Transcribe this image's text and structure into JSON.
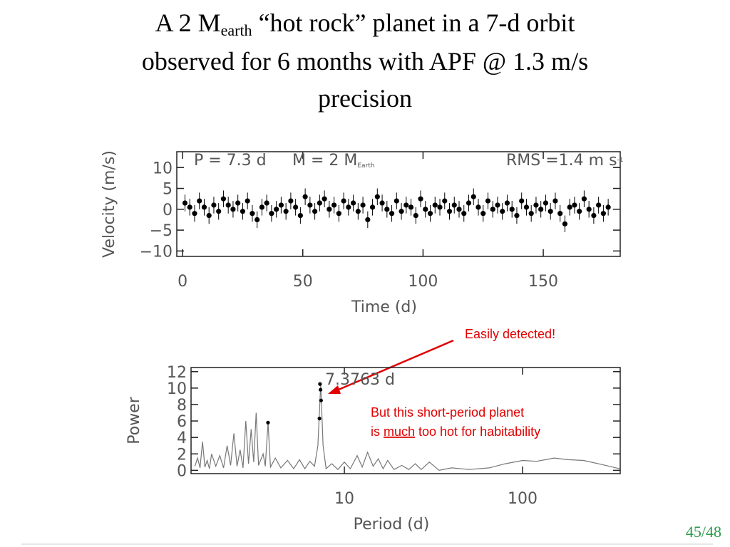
{
  "title": {
    "line1": [
      "A 2 M",
      "earth",
      "“hot rock” planet in a 7-d orbit"
    ],
    "line2": "observed for 6 months with APF @ 1.3 m/s",
    "line3": "precision"
  },
  "callout": "Easily detected!",
  "note": {
    "line1": "But this short-period planet",
    "line2": [
      "is",
      "much",
      "too hot for habitability"
    ]
  },
  "slide_number": "45/48",
  "chart_data": [
    {
      "type": "scatter",
      "x_label": "Time (d)",
      "y_label": "Velocity (m/s)",
      "annotations": {
        "period": "P = 7.3 d",
        "mass": [
          "M = 2 M",
          "Earth"
        ],
        "rms": [
          "RMS =1.4 m s",
          "-1"
        ]
      },
      "xlim": [
        -2.4,
        182
      ],
      "ylim": [
        -11.3,
        13.8
      ],
      "xticks": [
        0,
        50,
        100,
        150
      ],
      "yticks": [
        {
          "value": -10,
          "label": "−10"
        },
        {
          "value": -5,
          "label": "−5"
        },
        0,
        5,
        10
      ],
      "error": 2,
      "color": "#000000",
      "series": [
        {
          "x": [
            1,
            3,
            5,
            7,
            9,
            11,
            13,
            15,
            17,
            19,
            21,
            23,
            25,
            27,
            29,
            31,
            33,
            35,
            37,
            39,
            41,
            43,
            45,
            47,
            49,
            51,
            53,
            55,
            57,
            59,
            61,
            63,
            65,
            67,
            69,
            71,
            73,
            75,
            77,
            79,
            81,
            83,
            85,
            87,
            89,
            91,
            93,
            95,
            97,
            99,
            101,
            103,
            105,
            107,
            109,
            111,
            113,
            115,
            117,
            119,
            121,
            123,
            125,
            127,
            129,
            131,
            133,
            135,
            137,
            139,
            141,
            143,
            145,
            147,
            149,
            151,
            153,
            155,
            157,
            159,
            161,
            163,
            165,
            167,
            169,
            171,
            173,
            175,
            177
          ],
          "values": [
            1.5,
            0.5,
            -1,
            2,
            0.5,
            -1.5,
            1,
            -0.5,
            2.5,
            1,
            0,
            1.5,
            -0.5,
            2,
            -1,
            -2.5,
            0.5,
            1.5,
            -1,
            0,
            1,
            -0.5,
            2,
            0.5,
            -1.5,
            3,
            1,
            -0.5,
            1.5,
            2.5,
            0,
            1,
            -1,
            2,
            0.5,
            1.5,
            -0.5,
            1,
            -2.5,
            0.5,
            3,
            1.5,
            0,
            -1,
            2,
            -0.5,
            1,
            0.5,
            -1.5,
            2.5,
            0,
            -1,
            1,
            0.5,
            2,
            -0.5,
            1,
            0,
            -1,
            1.5,
            3,
            0.5,
            -1,
            2,
            0,
            1,
            -0.5,
            1.5,
            0,
            -1.5,
            2,
            0.5,
            -1,
            1,
            0,
            1.5,
            -0.5,
            2,
            -1,
            -3.5,
            0.5,
            1,
            -0.5,
            2.5,
            0,
            -1.5,
            1,
            -1,
            0.5
          ]
        }
      ]
    },
    {
      "type": "line",
      "x_label": "Period (d)",
      "y_label": "Power",
      "annotation": "7.3763 d",
      "xscale": "log",
      "xlim": [
        1.38,
        353
      ],
      "ylim": [
        -0.4,
        12.5
      ],
      "xticks": [
        10,
        100
      ],
      "yticks": [
        0,
        2,
        4,
        6,
        8,
        10,
        12
      ],
      "series": [
        {
          "color": "#777777",
          "x": [
            1.45,
            1.5,
            1.55,
            1.6,
            1.65,
            1.7,
            1.75,
            1.8,
            1.9,
            2.0,
            2.1,
            2.2,
            2.3,
            2.4,
            2.5,
            2.6,
            2.7,
            2.8,
            2.9,
            3.0,
            3.1,
            3.2,
            3.3,
            3.5,
            3.6,
            3.73,
            3.85,
            4.1,
            4.4,
            4.8,
            5.2,
            5.6,
            6.0,
            6.4,
            6.8,
            7.1,
            7.37,
            7.6,
            7.9,
            8.5,
            9.2,
            10,
            10.8,
            11.8,
            12.6,
            13.5,
            14.5,
            15.5,
            16.5,
            17.5,
            19,
            21,
            23,
            25,
            27,
            30,
            34,
            40,
            50,
            65,
            80,
            100,
            120,
            150,
            180,
            220,
            280,
            350
          ],
          "values": [
            0.5,
            1.5,
            0.3,
            3.5,
            0.4,
            1.2,
            0.2,
            2.0,
            0.5,
            1.8,
            0.3,
            3.0,
            0.6,
            4.5,
            0.5,
            2.5,
            0.3,
            6.0,
            0.8,
            5.0,
            1.0,
            7.0,
            0.6,
            2.0,
            0.5,
            5.8,
            0.4,
            1.5,
            0.3,
            1.2,
            0.2,
            1.3,
            0.2,
            1.1,
            0.5,
            3.0,
            10.5,
            3.0,
            0.2,
            0.8,
            0.1,
            1.0,
            0.2,
            1.8,
            0.4,
            2.2,
            0.5,
            1.4,
            0.2,
            1.2,
            0.1,
            0.6,
            0.1,
            0.8,
            0.1,
            1.0,
            0.0,
            0.3,
            0.1,
            0.3,
            0.8,
            1.2,
            1.1,
            1.5,
            1.3,
            1.2,
            0.7,
            0.2
          ]
        },
        {
          "color": "#000000",
          "markers": true,
          "x": [
            3.73,
            7.25,
            7.3,
            7.35,
            7.4
          ],
          "values": [
            5.8,
            6.3,
            10.5,
            9.8,
            8.5
          ]
        }
      ]
    }
  ]
}
